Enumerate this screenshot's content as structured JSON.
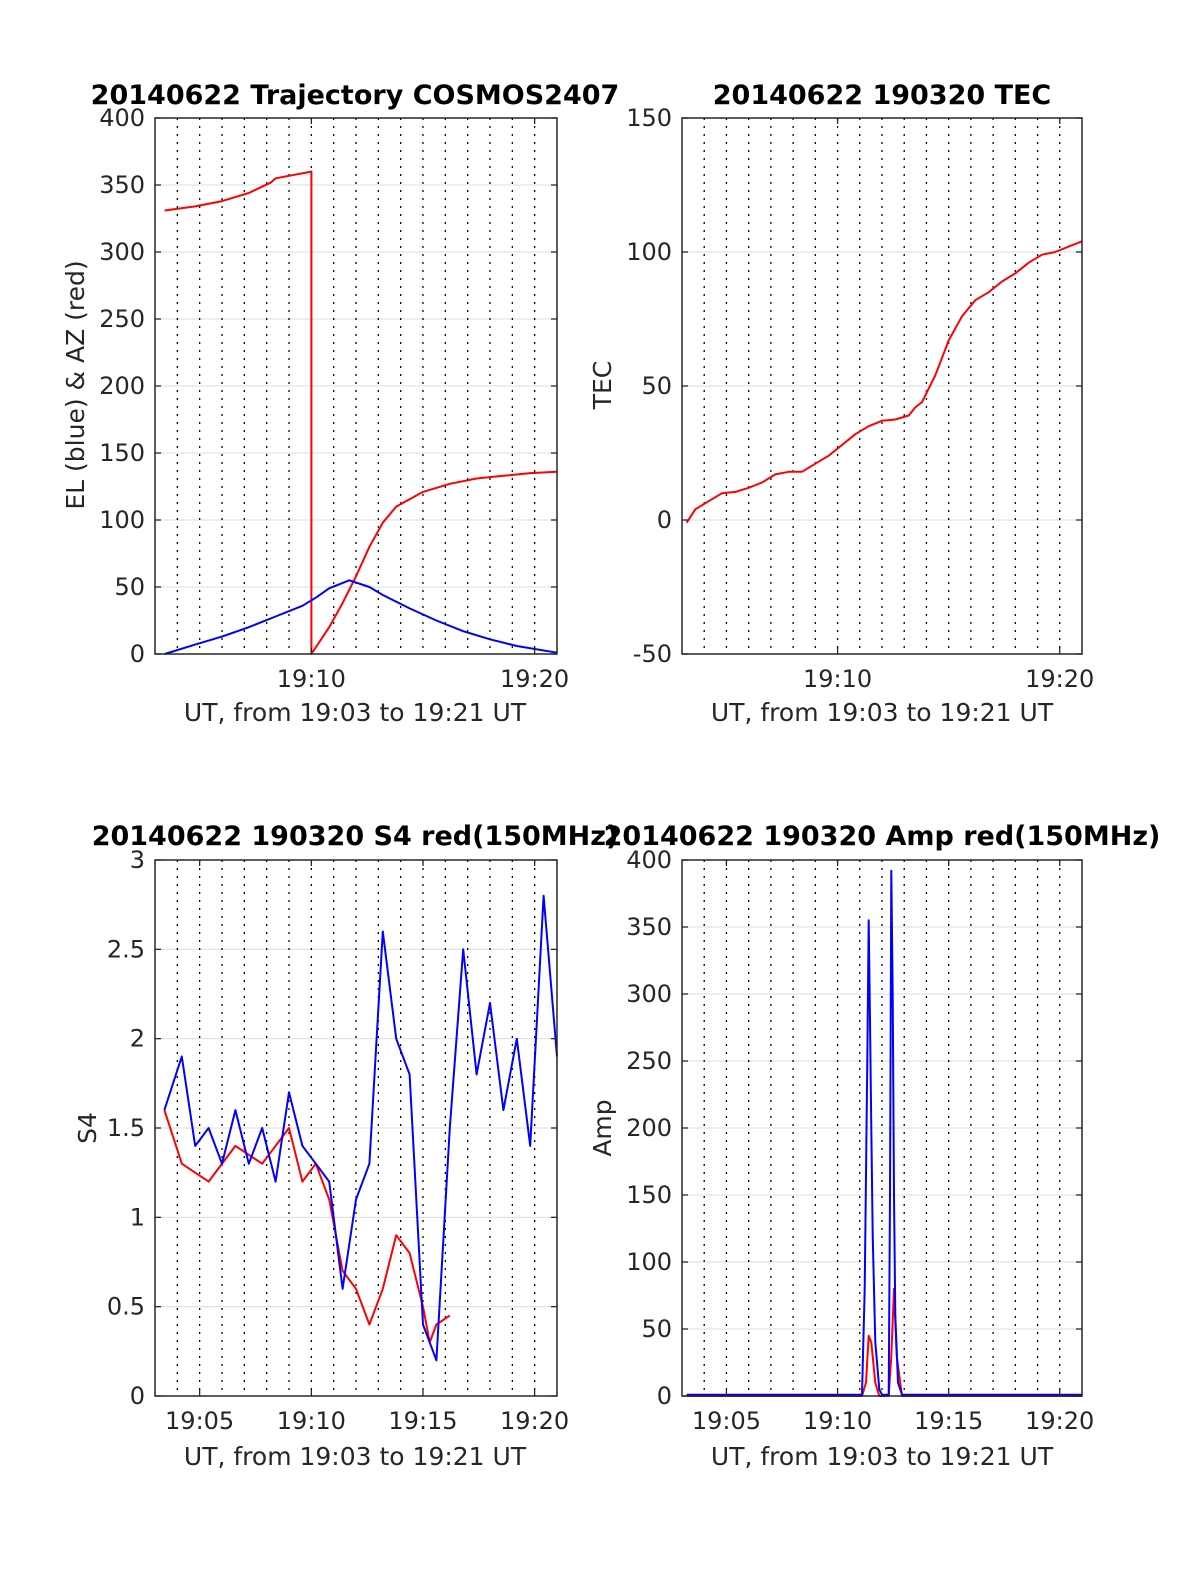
{
  "chart_data": [
    {
      "type": "line",
      "title": "20140622 Trajectory COSMOS2407",
      "xlabel": "UT, from 19:03 to 19:21 UT",
      "ylabel": "EL (blue) & AZ (red)",
      "xlim": [
        19.05,
        19.35
      ],
      "ylim": [
        0,
        400
      ],
      "yticks": [
        0,
        50,
        100,
        150,
        200,
        250,
        300,
        350,
        400
      ],
      "xticks": [
        {
          "value": 19.1667,
          "label": "19:10"
        },
        {
          "value": 19.3333,
          "label": "19:20"
        }
      ],
      "grid": true,
      "series": [
        {
          "color": "#ff0000",
          "x": [
            19.0572,
            19.08,
            19.1,
            19.12,
            19.1367,
            19.14,
            19.1667,
            19.1667,
            19.18,
            19.19,
            19.2,
            19.21,
            19.22,
            19.23,
            19.25,
            19.27,
            19.29,
            19.31,
            19.33,
            19.35
          ],
          "y": [
            331,
            334,
            338,
            344,
            352,
            355,
            360,
            0,
            20,
            38,
            58,
            80,
            98,
            110,
            121,
            127,
            131,
            133,
            135,
            136
          ]
        },
        {
          "color": "#0000ff",
          "x": [
            19.0572,
            19.08,
            19.1,
            19.12,
            19.14,
            19.16,
            19.17,
            19.18,
            19.195,
            19.21,
            19.22,
            19.24,
            19.26,
            19.28,
            19.3,
            19.32,
            19.35
          ],
          "y": [
            0,
            7,
            13,
            20,
            28,
            36,
            42,
            49,
            55,
            50,
            44,
            34,
            25,
            17,
            11,
            6,
            1
          ]
        }
      ]
    },
    {
      "type": "line",
      "title": "20140622 190320 TEC",
      "xlabel": "UT, from 19:03 to 19:21 UT",
      "ylabel": "TEC",
      "xlim": [
        19.05,
        19.35
      ],
      "ylim": [
        -50,
        150
      ],
      "yticks": [
        -50,
        0,
        50,
        100,
        150
      ],
      "xticks": [
        {
          "value": 19.1667,
          "label": "19:10"
        },
        {
          "value": 19.3333,
          "label": "19:20"
        }
      ],
      "grid": true,
      "series": [
        {
          "color": "#ff0000",
          "x": [
            19.0535,
            19.06,
            19.07,
            19.08,
            19.09,
            19.1,
            19.11,
            19.12,
            19.13,
            19.14,
            19.15,
            19.16,
            19.17,
            19.18,
            19.19,
            19.2,
            19.21,
            19.22,
            19.225,
            19.23,
            19.24,
            19.25,
            19.26,
            19.27,
            19.28,
            19.29,
            19.3,
            19.31,
            19.32,
            19.33,
            19.34,
            19.35
          ],
          "y": [
            -1,
            4,
            7,
            10,
            10.5,
            12,
            14,
            17,
            18,
            18,
            21,
            24,
            28,
            32,
            35,
            37,
            37.5,
            39,
            42,
            44,
            54,
            67,
            76,
            82,
            85,
            89,
            92,
            96,
            99,
            100,
            102,
            104
          ]
        }
      ]
    },
    {
      "type": "line",
      "title": "20140622 190320 S4 red(150MHz)",
      "xlabel": "UT, from 19:03 to 19:21 UT",
      "ylabel": "S4",
      "xlim": [
        19.05,
        19.35
      ],
      "ylim": [
        0,
        3
      ],
      "yticks": [
        0,
        0.5,
        1,
        1.5,
        2,
        2.5,
        3
      ],
      "xticks": [
        {
          "value": 19.0833,
          "label": "19:05"
        },
        {
          "value": 19.1667,
          "label": "19:10"
        },
        {
          "value": 19.25,
          "label": "19:15"
        },
        {
          "value": 19.3333,
          "label": "19:20"
        }
      ],
      "grid": true,
      "series": [
        {
          "color": "#ff0000",
          "x": [
            19.057,
            19.07,
            19.09,
            19.11,
            19.13,
            19.15,
            19.16,
            19.17,
            19.18,
            19.19,
            19.2,
            19.21,
            19.22,
            19.23,
            19.24,
            19.25,
            19.255,
            19.26,
            19.27
          ],
          "y": [
            1.6,
            1.3,
            1.2,
            1.4,
            1.3,
            1.5,
            1.2,
            1.3,
            1.1,
            0.7,
            0.6,
            0.4,
            0.6,
            0.9,
            0.8,
            0.5,
            0.3,
            0.4,
            0.45
          ]
        },
        {
          "color": "#0000ff",
          "x": [
            19.057,
            19.07,
            19.08,
            19.09,
            19.1,
            19.11,
            19.12,
            19.13,
            19.14,
            19.15,
            19.16,
            19.17,
            19.18,
            19.19,
            19.2,
            19.21,
            19.22,
            19.23,
            19.24,
            19.25,
            19.26,
            19.27,
            19.28,
            19.29,
            19.3,
            19.31,
            19.32,
            19.33,
            19.34,
            19.35
          ],
          "y": [
            1.6,
            1.9,
            1.4,
            1.5,
            1.3,
            1.6,
            1.3,
            1.5,
            1.2,
            1.7,
            1.4,
            1.3,
            1.2,
            0.6,
            1.1,
            1.3,
            2.6,
            2.0,
            1.8,
            0.4,
            0.2,
            1.5,
            2.5,
            1.8,
            2.2,
            1.6,
            2.0,
            1.4,
            2.8,
            1.9
          ]
        }
      ]
    },
    {
      "type": "line",
      "title": "20140622 190320 Amp red(150MHz)",
      "xlabel": "UT, from 19:03 to 19:21 UT",
      "ylabel": "Amp",
      "xlim": [
        19.05,
        19.35
      ],
      "ylim": [
        0,
        400
      ],
      "yticks": [
        0,
        50,
        100,
        150,
        200,
        250,
        300,
        350,
        400
      ],
      "xticks": [
        {
          "value": 19.0833,
          "label": "19:05"
        },
        {
          "value": 19.1667,
          "label": "19:10"
        },
        {
          "value": 19.25,
          "label": "19:15"
        },
        {
          "value": 19.3333,
          "label": "19:20"
        }
      ],
      "grid": true,
      "series": [
        {
          "color": "#ff0000",
          "x": [
            19.0535,
            19.185,
            19.188,
            19.19,
            19.192,
            19.195,
            19.198,
            19.2,
            19.205,
            19.207,
            19.209,
            19.211,
            19.215,
            19.35
          ],
          "y": [
            0,
            0,
            10,
            45,
            40,
            10,
            0,
            0,
            0,
            30,
            80,
            30,
            0,
            0
          ]
        },
        {
          "color": "#0000ff",
          "x": [
            19.0535,
            19.1,
            19.15,
            19.185,
            19.187,
            19.189,
            19.19,
            19.191,
            19.192,
            19.193,
            19.195,
            19.198,
            19.2,
            19.205,
            19.206,
            19.207,
            19.208,
            19.209,
            19.21,
            19.212,
            19.215,
            19.25,
            19.3,
            19.35
          ],
          "y": [
            1,
            1,
            1,
            1,
            80,
            250,
            355,
            280,
            200,
            120,
            40,
            5,
            1,
            1,
            150,
            392,
            300,
            150,
            60,
            10,
            1,
            1,
            1,
            1
          ]
        }
      ]
    }
  ]
}
